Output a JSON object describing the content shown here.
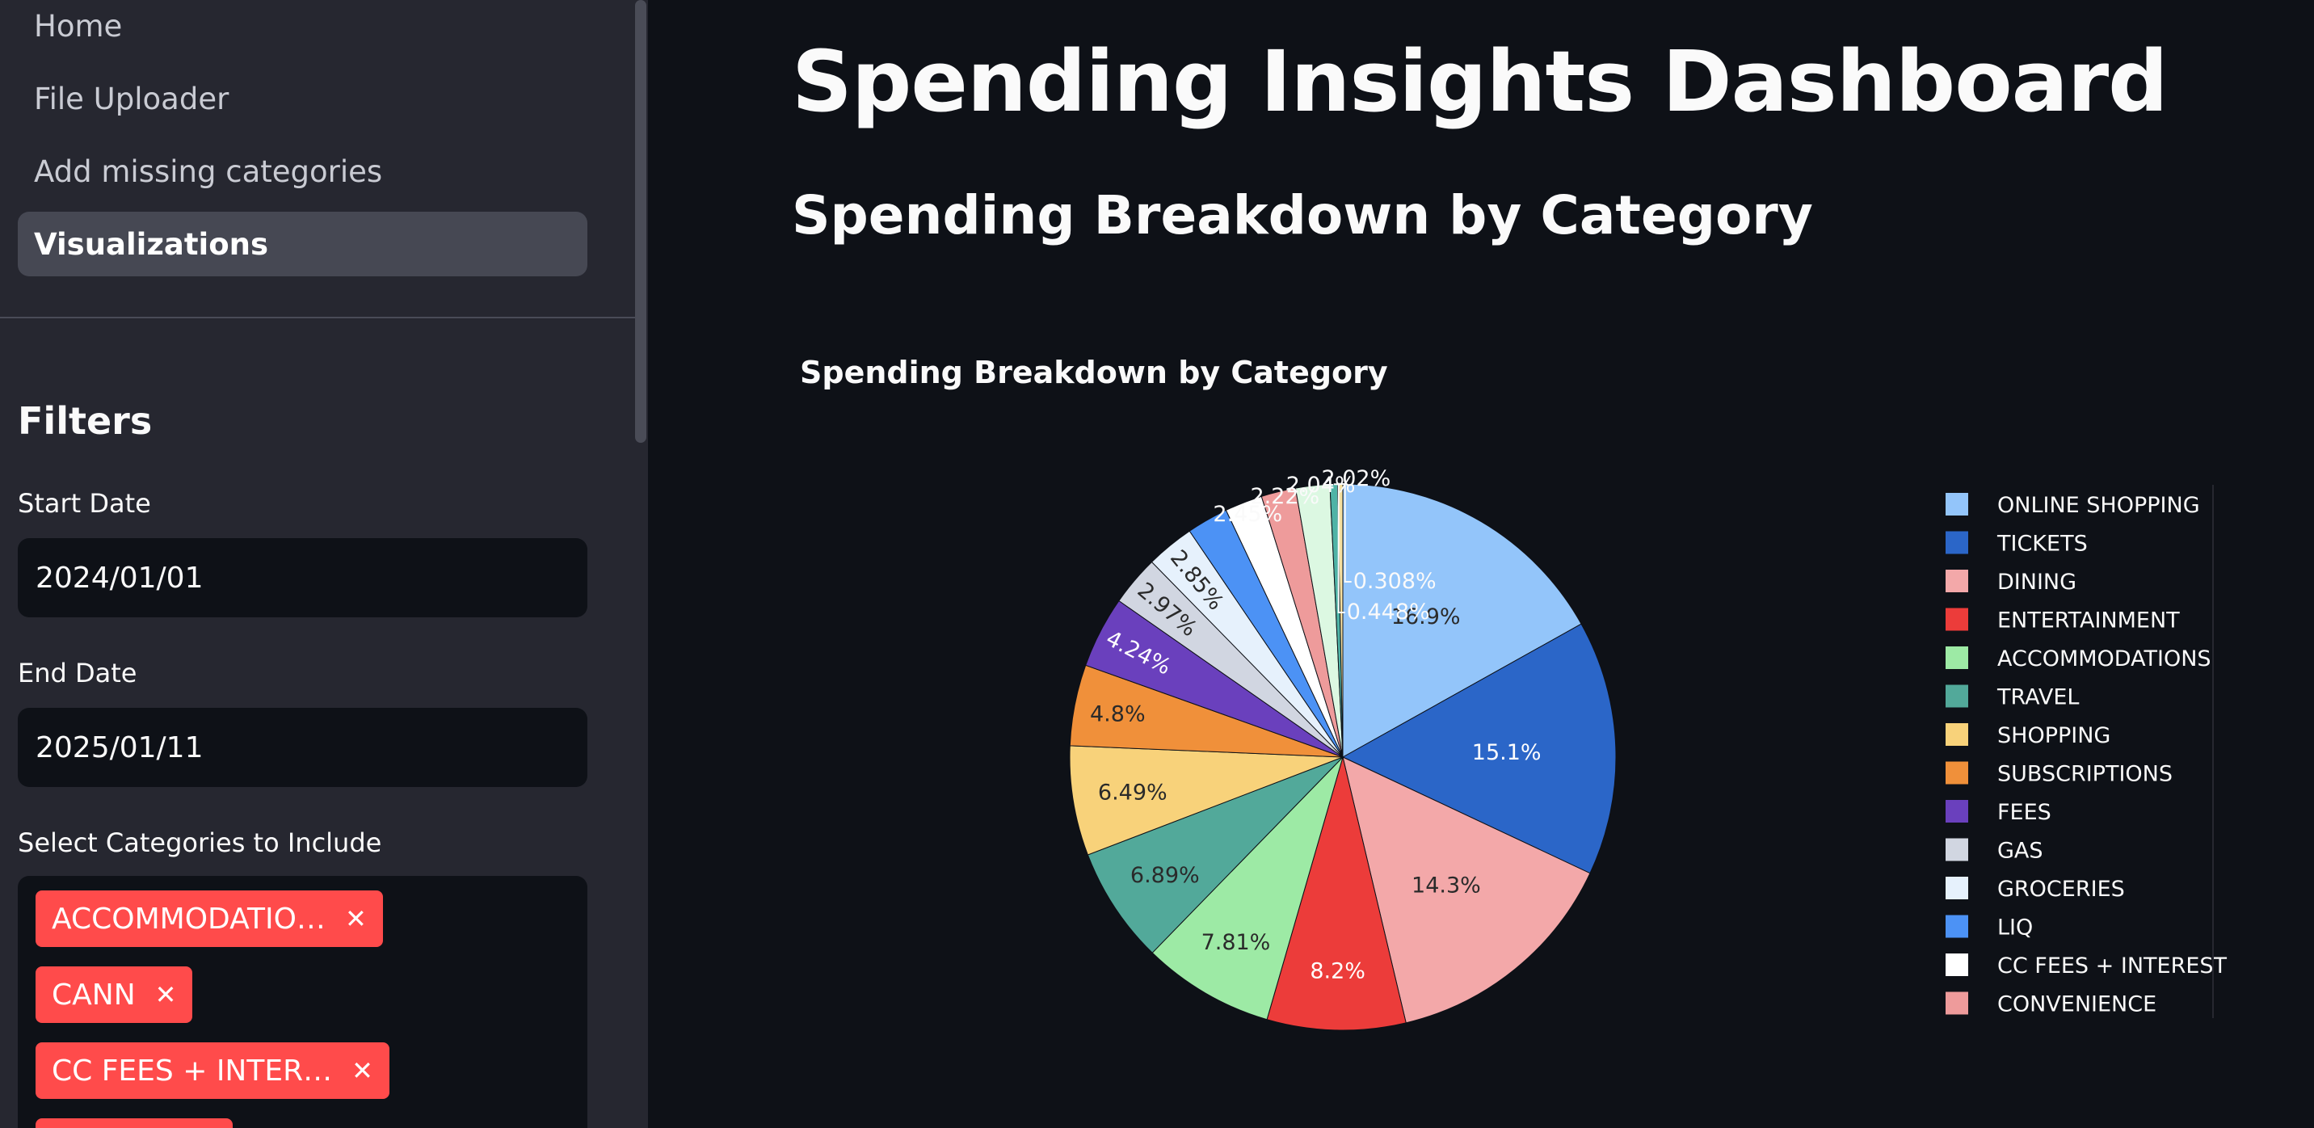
{
  "sidebar": {
    "nav": [
      {
        "label": "Home",
        "active": false
      },
      {
        "label": "File Uploader",
        "active": false
      },
      {
        "label": "Add missing categories",
        "active": false
      },
      {
        "label": "Visualizations",
        "active": true
      }
    ],
    "filters_title": "Filters",
    "start_date": {
      "label": "Start Date",
      "value": "2024/01/01"
    },
    "end_date": {
      "label": "End Date",
      "value": "2025/01/11"
    },
    "categories": {
      "label": "Select Categories to Include",
      "selected": [
        "ACCOMMODATIO…",
        "CANN",
        "CC FEES + INTER…"
      ]
    }
  },
  "main": {
    "title": "Spending Insights Dashboard",
    "section_title": "Spending Breakdown by Category"
  },
  "chart_data": {
    "type": "pie",
    "title": "Spending Breakdown by Category",
    "legend_position": "right",
    "slices": [
      {
        "label": "ONLINE SHOPPING",
        "percent": 16.9,
        "text": "16.9%",
        "color": "#93c5fa"
      },
      {
        "label": "TICKETS",
        "percent": 15.1,
        "text": "15.1%",
        "color": "#2b66c8"
      },
      {
        "label": "DINING",
        "percent": 14.3,
        "text": "14.3%",
        "color": "#f3a8a9"
      },
      {
        "label": "ENTERTAINMENT",
        "percent": 8.2,
        "text": "8.2%",
        "color": "#ec3c3a"
      },
      {
        "label": "ACCOMMODATIONS",
        "percent": 7.81,
        "text": "7.81%",
        "color": "#9deaa5"
      },
      {
        "label": "TRAVEL",
        "percent": 6.89,
        "text": "6.89%",
        "color": "#52a99a"
      },
      {
        "label": "SHOPPING",
        "percent": 6.49,
        "text": "6.49%",
        "color": "#f8d27a"
      },
      {
        "label": "SUBSCRIPTIONS",
        "percent": 4.8,
        "text": "4.8%",
        "color": "#f0903a"
      },
      {
        "label": "FEES",
        "percent": 4.24,
        "text": "4.24%",
        "color": "#6a40bd"
      },
      {
        "label": "GAS",
        "percent": 2.97,
        "text": "2.97%",
        "color": "#d1d6e1"
      },
      {
        "label": "GROCERIES",
        "percent": 2.85,
        "text": "2.85%",
        "color": "#e6f1fc"
      },
      {
        "label": "LIQ",
        "percent": 2.45,
        "text": "2.45%",
        "color": "#4c92f5"
      },
      {
        "label": "CC FEES + INTEREST",
        "percent": 2.22,
        "text": "2.22%",
        "color": "#ffffff"
      },
      {
        "label": "CONVENIENCE",
        "percent": 2.04,
        "text": "2.04%",
        "color": "#ee9b9b"
      },
      {
        "label": "",
        "percent": 2.02,
        "text": "2.02%",
        "color": "#dcf8e2"
      },
      {
        "label": "",
        "percent": 0.448,
        "text": "0.448%",
        "color": "#4fb3a6"
      },
      {
        "label": "",
        "percent": 0.308,
        "text": "0.308%",
        "color": "#f6e0a0"
      }
    ]
  }
}
